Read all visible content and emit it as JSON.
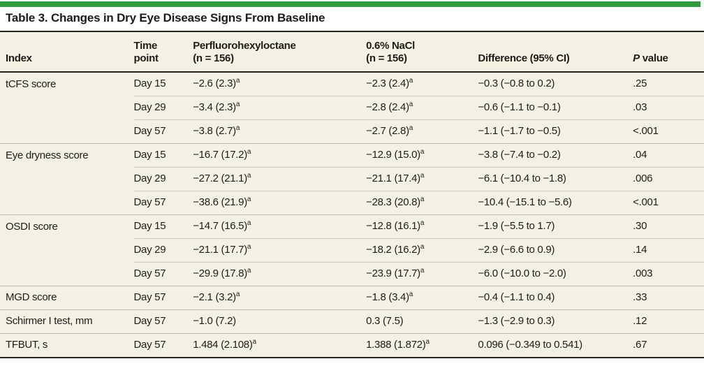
{
  "page": {
    "title": "Table 3. Changes in Dry Eye Disease Signs From Baseline",
    "accent_color": "#2e9c3c",
    "table_background": "#f3f0e4"
  },
  "table": {
    "header": {
      "index": "Index",
      "time_point": "Time\npoint",
      "pfh": "Perfluorohexyloctane\n(n = 156)",
      "nacl": "0.6% NaCl\n(n = 156)",
      "difference": "Difference (95% CI)",
      "p_italic": "P",
      "p_rest": " value"
    },
    "rows": [
      {
        "index": "tCFS score",
        "time": "Day 15",
        "pfh": "−2.6 (2.3)",
        "pfh_sup": "a",
        "nacl": "−2.3 (2.4)",
        "nacl_sup": "a",
        "diff": "−0.3 (−0.8 to 0.2)",
        "p": ".25",
        "group_start": true
      },
      {
        "index": "",
        "time": "Day 29",
        "pfh": "−3.4 (2.3)",
        "pfh_sup": "a",
        "nacl": "−2.8 (2.4)",
        "nacl_sup": "a",
        "diff": "−0.6 (−1.1 to −0.1)",
        "p": ".03",
        "group_start": false
      },
      {
        "index": "",
        "time": "Day 57",
        "pfh": "−3.8 (2.7)",
        "pfh_sup": "a",
        "nacl": "−2.7 (2.8)",
        "nacl_sup": "a",
        "diff": "−1.1 (−1.7 to −0.5)",
        "p": "<.001",
        "group_start": false
      },
      {
        "index": "Eye dryness score",
        "time": "Day 15",
        "pfh": "−16.7 (17.2)",
        "pfh_sup": "a",
        "nacl": "−12.9 (15.0)",
        "nacl_sup": "a",
        "diff": "−3.8 (−7.4 to −0.2)",
        "p": ".04",
        "group_start": true
      },
      {
        "index": "",
        "time": "Day 29",
        "pfh": "−27.2 (21.1)",
        "pfh_sup": "a",
        "nacl": "−21.1 (17.4)",
        "nacl_sup": "a",
        "diff": "−6.1 (−10.4 to −1.8)",
        "p": ".006",
        "group_start": false
      },
      {
        "index": "",
        "time": "Day 57",
        "pfh": "−38.6 (21.9)",
        "pfh_sup": "a",
        "nacl": "−28.3 (20.8)",
        "nacl_sup": "a",
        "diff": "−10.4 (−15.1 to −5.6)",
        "p": "<.001",
        "group_start": false
      },
      {
        "index": "OSDI score",
        "time": "Day 15",
        "pfh": "−14.7 (16.5)",
        "pfh_sup": "a",
        "nacl": "−12.8 (16.1)",
        "nacl_sup": "a",
        "diff": "−1.9 (−5.5 to 1.7)",
        "p": ".30",
        "group_start": true
      },
      {
        "index": "",
        "time": "Day 29",
        "pfh": "−21.1 (17.7)",
        "pfh_sup": "a",
        "nacl": "−18.2 (16.2)",
        "nacl_sup": "a",
        "diff": "−2.9 (−6.6 to 0.9)",
        "p": ".14",
        "group_start": false
      },
      {
        "index": "",
        "time": "Day 57",
        "pfh": "−29.9 (17.8)",
        "pfh_sup": "a",
        "nacl": "−23.9 (17.7)",
        "nacl_sup": "a",
        "diff": "−6.0 (−10.0 to −2.0)",
        "p": ".003",
        "group_start": false
      },
      {
        "index": "MGD score",
        "time": "Day 57",
        "pfh": "−2.1 (3.2)",
        "pfh_sup": "a",
        "nacl": "−1.8 (3.4)",
        "nacl_sup": "a",
        "diff": "−0.4 (−1.1 to 0.4)",
        "p": ".33",
        "group_start": true
      },
      {
        "index": "Schirmer I test, mm",
        "time": "Day 57",
        "pfh": "−1.0 (7.2)",
        "pfh_sup": "",
        "nacl": "0.3 (7.5)",
        "nacl_sup": "",
        "diff": "−1.3 (−2.9 to 0.3)",
        "p": ".12",
        "group_start": true
      },
      {
        "index": "TFBUT, s",
        "time": "Day 57",
        "pfh": "1.484 (2.108)",
        "pfh_sup": "a",
        "nacl": "1.388 (1.872)",
        "nacl_sup": "a",
        "diff": "0.096 (−0.349 to 0.541)",
        "p": ".67",
        "group_start": true
      }
    ]
  }
}
